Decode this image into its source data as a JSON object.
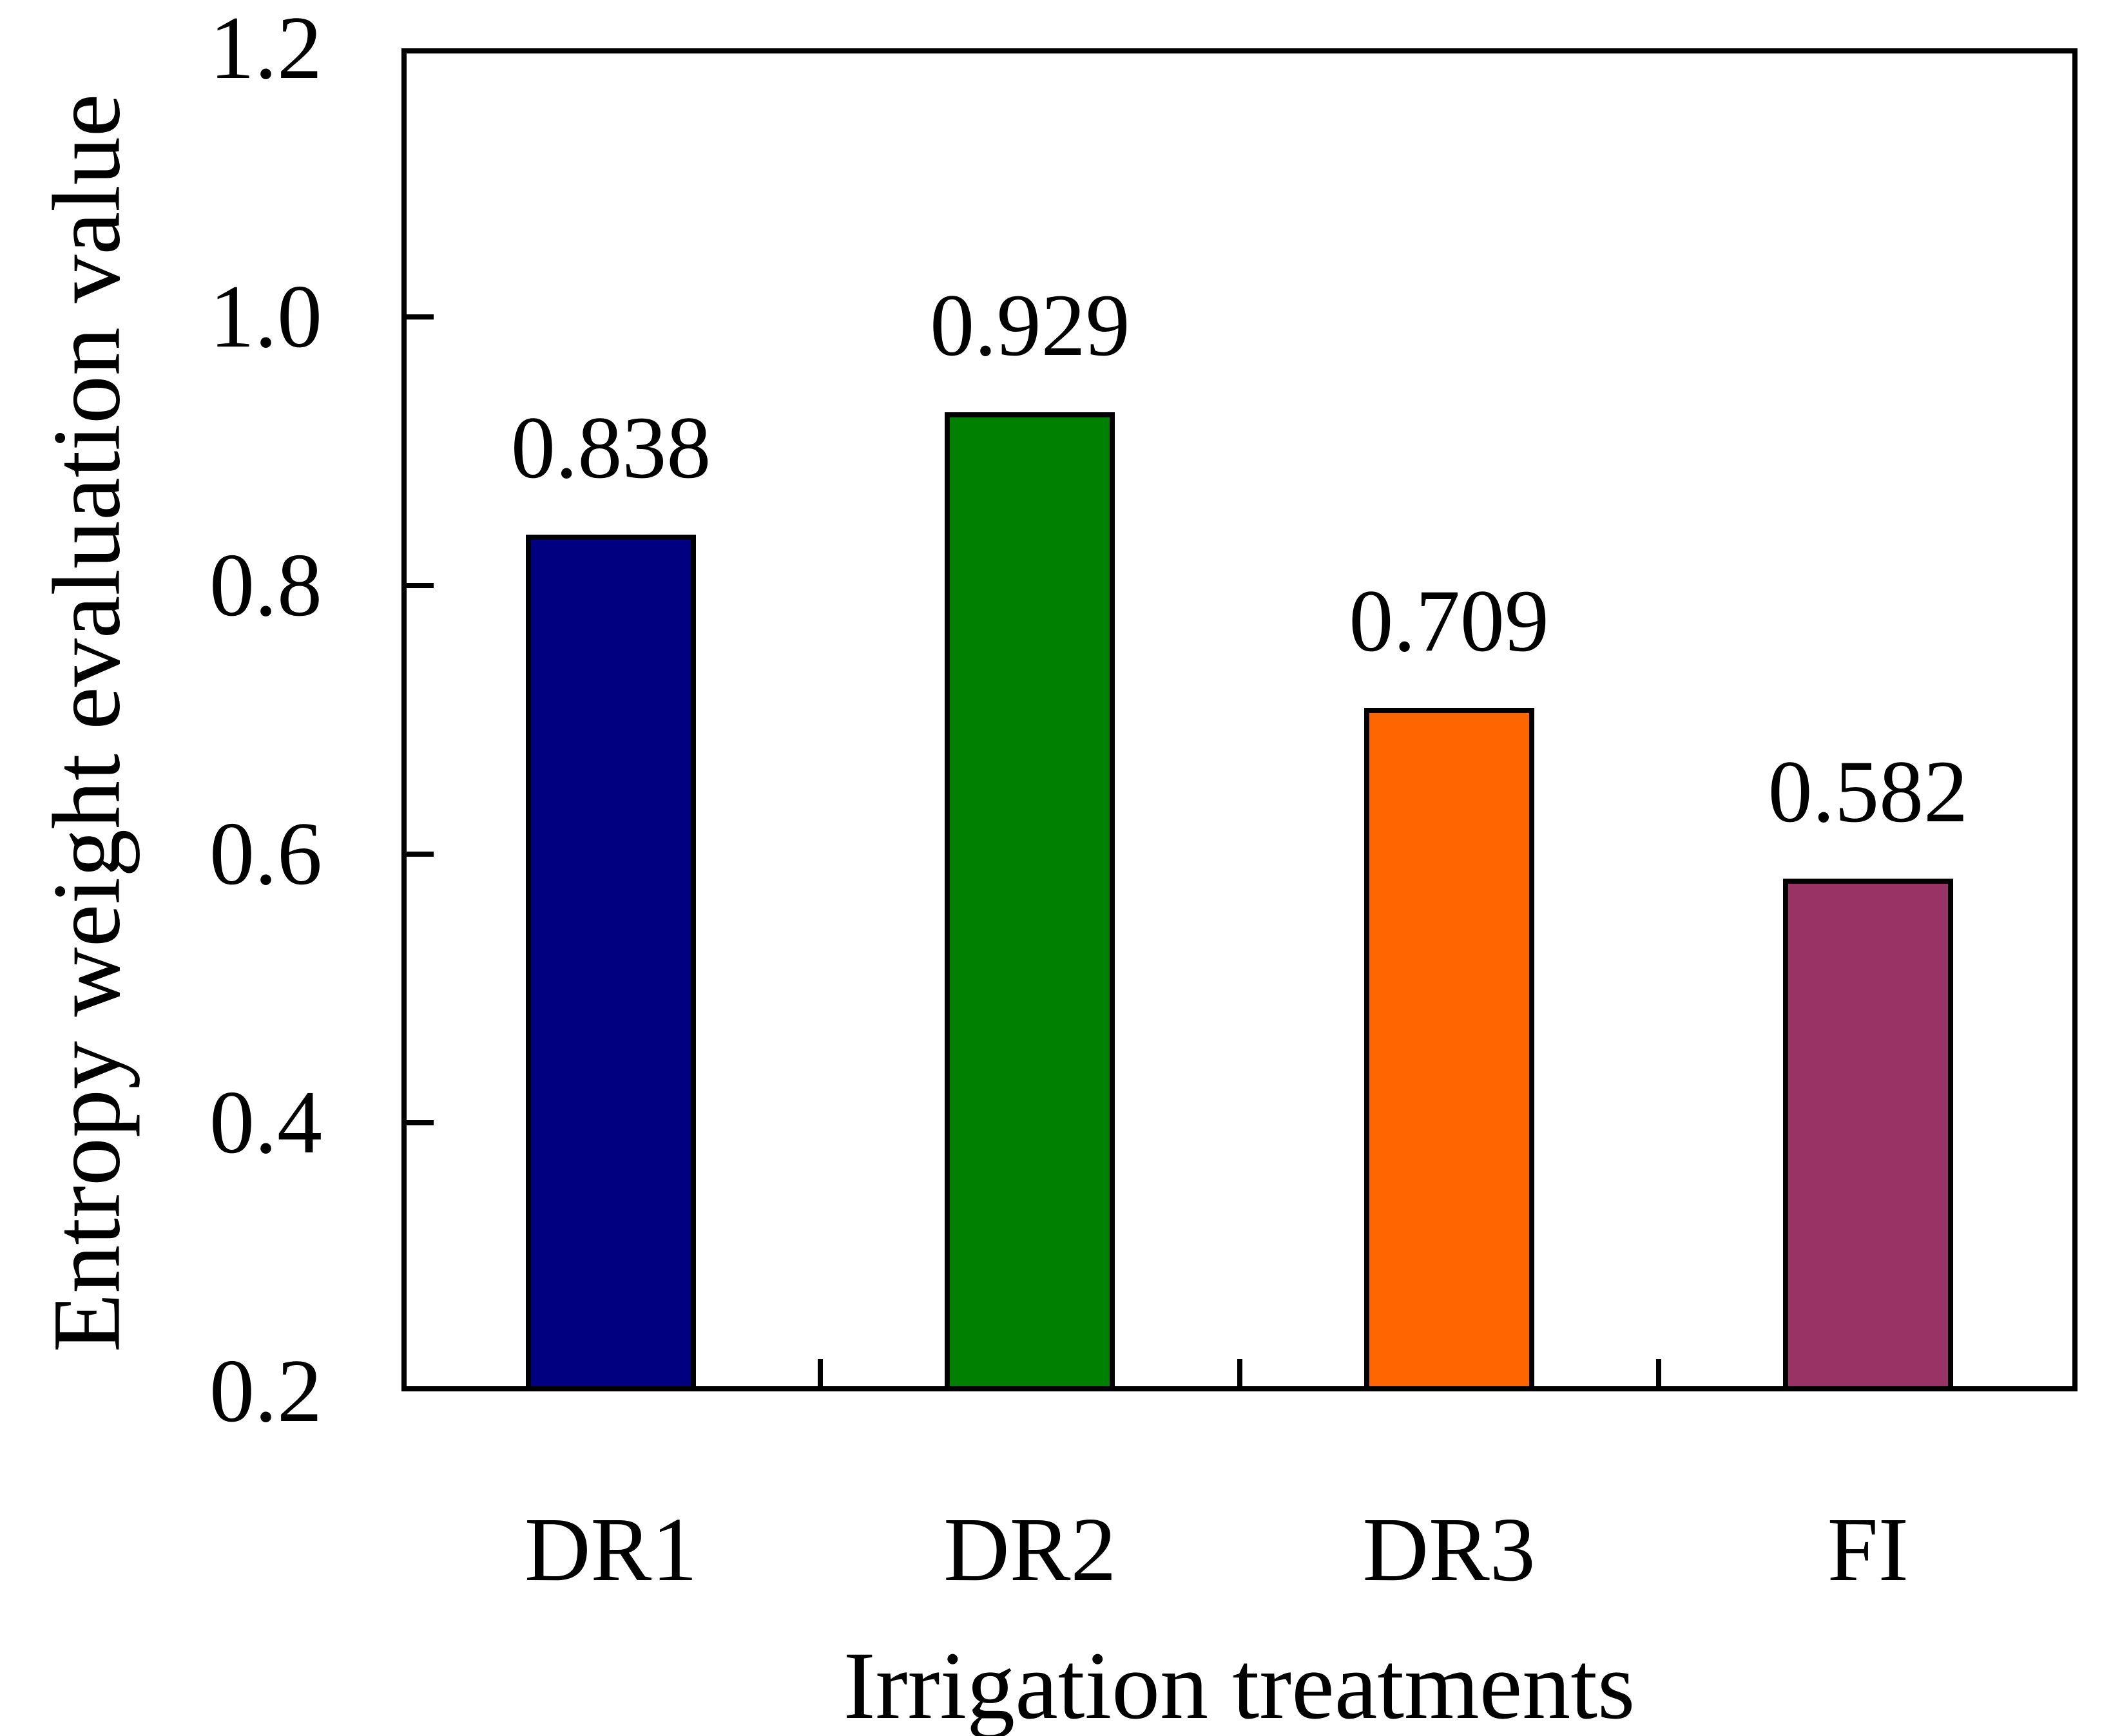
{
  "chart_data": {
    "type": "bar",
    "title": "",
    "categories": [
      "DR1",
      "DR2",
      "DR3",
      "FI"
    ],
    "values": [
      0.838,
      0.929,
      0.709,
      0.582
    ],
    "bar_labels": [
      "0.838",
      "0.929",
      "0.709",
      "0.582"
    ],
    "bar_colors": [
      "#000080",
      "#008000",
      "#FF6600",
      "#993366"
    ],
    "bar_outline_color": "#000000",
    "xlabel": "Irrigation treatments",
    "ylabel": "Entropy weight evaluation value",
    "ylim": [
      0.2,
      1.2
    ],
    "yticks": [
      0.2,
      0.4,
      0.6,
      0.8,
      1.0,
      1.2
    ],
    "ytick_labels": [
      "0.2",
      "0.4",
      "0.6",
      "0.8",
      "1.0",
      "1.2"
    ],
    "xticks_at_slot_boundaries": true,
    "grid": false,
    "legend": "none",
    "frame_color": "#000000",
    "background_color": "#FFFFFF",
    "text_color": "#000000"
  }
}
